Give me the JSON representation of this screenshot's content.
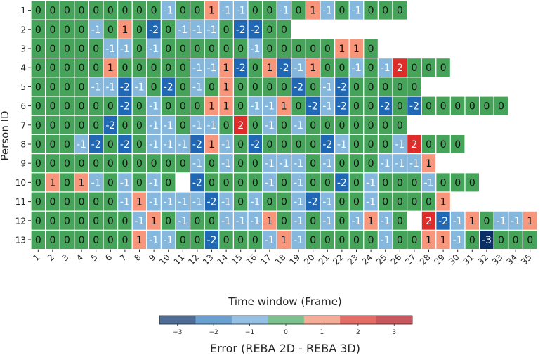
{
  "chart_data": {
    "type": "heatmap",
    "xlabel": "Time window (Frame)",
    "ylabel": "Person ID",
    "x_categories": [
      "1",
      "2",
      "3",
      "4",
      "5",
      "6",
      "7",
      "8",
      "9",
      "10",
      "11",
      "12",
      "13",
      "14",
      "15",
      "16",
      "17",
      "18",
      "19",
      "20",
      "21",
      "22",
      "23",
      "24",
      "25",
      "26",
      "27",
      "28",
      "29",
      "30",
      "31",
      "32",
      "33",
      "34",
      "35"
    ],
    "y_categories": [
      "1",
      "2",
      "3",
      "4",
      "5",
      "6",
      "7",
      "8",
      "9",
      "10",
      "11",
      "12",
      "13"
    ],
    "values": [
      [
        0,
        0,
        0,
        0,
        0,
        0,
        0,
        0,
        0,
        -1,
        0,
        0,
        1,
        -1,
        -1,
        0,
        0,
        -1,
        0,
        1,
        -1,
        0,
        -1,
        0,
        0,
        0,
        null,
        null,
        null,
        null,
        null,
        null,
        null,
        null,
        null
      ],
      [
        0,
        0,
        0,
        0,
        -1,
        0,
        1,
        0,
        -2,
        0,
        -1,
        -1,
        -1,
        0,
        -2,
        -2,
        0,
        0,
        null,
        null,
        null,
        null,
        null,
        null,
        null,
        null,
        null,
        null,
        null,
        null,
        null,
        null,
        null,
        null,
        null
      ],
      [
        0,
        0,
        0,
        0,
        0,
        -1,
        -1,
        0,
        -1,
        0,
        0,
        0,
        0,
        0,
        0,
        -1,
        0,
        0,
        0,
        0,
        0,
        1,
        1,
        0,
        null,
        null,
        null,
        null,
        null,
        null,
        null,
        null,
        null,
        null,
        null
      ],
      [
        0,
        0,
        0,
        0,
        0,
        1,
        0,
        0,
        0,
        0,
        0,
        -1,
        -1,
        1,
        -2,
        0,
        1,
        -2,
        -1,
        1,
        0,
        0,
        -1,
        0,
        -1,
        2,
        0,
        0,
        0,
        null,
        null,
        null,
        null,
        null,
        null
      ],
      [
        0,
        0,
        0,
        0,
        -1,
        -1,
        -2,
        -1,
        0,
        -2,
        0,
        -1,
        0,
        1,
        0,
        0,
        0,
        0,
        -2,
        0,
        -1,
        -2,
        0,
        0,
        0,
        0,
        0,
        null,
        null,
        null,
        null,
        null,
        null,
        null,
        null
      ],
      [
        0,
        0,
        0,
        0,
        0,
        0,
        -2,
        0,
        -1,
        0,
        0,
        0,
        1,
        1,
        0,
        -1,
        -1,
        1,
        0,
        -2,
        -1,
        -2,
        0,
        0,
        -2,
        0,
        -2,
        0,
        0,
        0,
        0,
        0,
        0,
        null,
        null
      ],
      [
        0,
        0,
        0,
        0,
        0,
        -2,
        0,
        0,
        -1,
        -1,
        0,
        -1,
        -1,
        0,
        2,
        0,
        -1,
        0,
        -1,
        0,
        0,
        0,
        0,
        0,
        0,
        0,
        null,
        null,
        null,
        null,
        null,
        null,
        null,
        null,
        null
      ],
      [
        0,
        0,
        0,
        -1,
        -2,
        0,
        -2,
        0,
        -1,
        -1,
        -1,
        -2,
        1,
        -1,
        0,
        -2,
        0,
        0,
        0,
        0,
        -2,
        -1,
        0,
        0,
        0,
        -1,
        2,
        0,
        0,
        0,
        null,
        null,
        null,
        null,
        null
      ],
      [
        0,
        0,
        0,
        0,
        0,
        0,
        0,
        0,
        0,
        0,
        0,
        -1,
        0,
        -1,
        0,
        0,
        -1,
        -1,
        -1,
        0,
        -1,
        0,
        0,
        0,
        -1,
        -1,
        -1,
        1,
        null,
        null,
        null,
        null,
        null,
        null,
        null
      ],
      [
        0,
        1,
        0,
        1,
        -1,
        0,
        -1,
        0,
        -1,
        0,
        null,
        -2,
        0,
        0,
        0,
        0,
        -1,
        0,
        -1,
        0,
        0,
        -2,
        0,
        -1,
        0,
        0,
        0,
        -1,
        0,
        0,
        0,
        null,
        null,
        null,
        null
      ],
      [
        0,
        0,
        0,
        0,
        0,
        0,
        -1,
        1,
        -1,
        -1,
        -1,
        -1,
        -2,
        -1,
        0,
        -1,
        0,
        0,
        -1,
        -2,
        -1,
        0,
        0,
        -1,
        0,
        0,
        0,
        0,
        1,
        null,
        null,
        null,
        null,
        null,
        null
      ],
      [
        0,
        0,
        0,
        0,
        0,
        0,
        0,
        -1,
        1,
        0,
        -1,
        0,
        0,
        -1,
        -1,
        -1,
        1,
        0,
        -1,
        0,
        -1,
        0,
        -1,
        1,
        -1,
        0,
        null,
        2,
        -2,
        -1,
        1,
        0,
        -1,
        -1,
        1
      ],
      [
        0,
        0,
        0,
        0,
        0,
        0,
        0,
        1,
        -1,
        -1,
        0,
        0,
        -2,
        0,
        0,
        0,
        -1,
        1,
        -1,
        0,
        0,
        0,
        0,
        0,
        -1,
        0,
        0,
        1,
        1,
        -1,
        0,
        -3,
        0,
        0,
        0
      ]
    ],
    "colorbar": {
      "label": "Error (REBA 2D - REBA  3D)",
      "ticks": [
        -3,
        -2,
        -1,
        0,
        1,
        2,
        3
      ],
      "tick_labels": [
        "−3",
        "−2",
        "−1",
        "0",
        "1",
        "2",
        "3"
      ],
      "range": [
        -3.5,
        3.5
      ]
    },
    "cell_colors": {
      "-3": "#0a2f66",
      "-2": "#2068b4",
      "-1": "#86b8de",
      "0": "#45a45a",
      "1": "#f7967a",
      "2": "#dd2d2b",
      "3": "#b81f2a"
    },
    "colorbar_colors": [
      "#4e6c96",
      "#6aa0d0",
      "#93c0e4",
      "#7bc08d",
      "#f5ad97",
      "#e36d65",
      "#c9575e"
    ]
  }
}
